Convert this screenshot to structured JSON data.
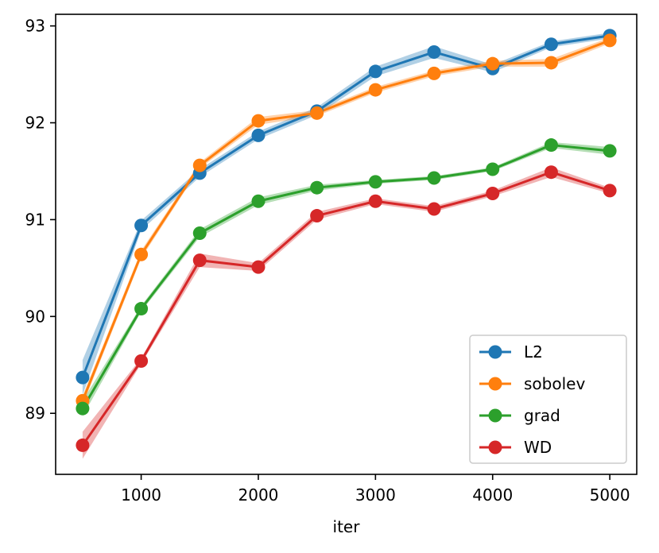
{
  "chart_data": {
    "type": "line",
    "title": "",
    "xlabel": "iter",
    "ylabel": "",
    "xlim": [
      270,
      5230
    ],
    "ylim": [
      88.37,
      93.12
    ],
    "xticks": [
      1000,
      2000,
      3000,
      4000,
      5000
    ],
    "xtick_labels": [
      "1000",
      "2000",
      "3000",
      "4000",
      "5000"
    ],
    "yticks": [
      89,
      90,
      91,
      92,
      93
    ],
    "ytick_labels": [
      "89",
      "90",
      "91",
      "92",
      "93"
    ],
    "x": [
      500,
      1000,
      1500,
      2000,
      2500,
      3000,
      3500,
      4000,
      4500,
      5000
    ],
    "legend_position": "lower right",
    "series": [
      {
        "name": "L2",
        "color": "#1f77b4",
        "values": [
          89.37,
          90.94,
          91.48,
          91.87,
          92.12,
          92.53,
          92.73,
          92.56,
          92.81,
          92.9
        ],
        "band": [
          0.18,
          0.05,
          0.04,
          0.04,
          0.04,
          0.05,
          0.06,
          0.04,
          0.03,
          0.03
        ]
      },
      {
        "name": "sobolev",
        "color": "#ff7f0e",
        "values": [
          89.13,
          90.64,
          91.56,
          92.02,
          92.1,
          92.34,
          92.51,
          92.61,
          92.62,
          92.85
        ],
        "band": [
          0.05,
          0.04,
          0.03,
          0.04,
          0.03,
          0.03,
          0.03,
          0.03,
          0.04,
          0.03
        ]
      },
      {
        "name": "grad",
        "color": "#2ca02c",
        "values": [
          89.05,
          90.08,
          90.86,
          91.19,
          91.33,
          91.39,
          91.43,
          91.52,
          91.77,
          91.71
        ],
        "band": [
          0.08,
          0.03,
          0.04,
          0.04,
          0.03,
          0.02,
          0.02,
          0.02,
          0.03,
          0.04
        ]
      },
      {
        "name": "WD",
        "color": "#d62728",
        "values": [
          88.67,
          89.54,
          90.58,
          90.51,
          91.04,
          91.19,
          91.11,
          91.27,
          91.49,
          91.3
        ],
        "band": [
          0.14,
          0.03,
          0.07,
          0.04,
          0.04,
          0.03,
          0.03,
          0.03,
          0.05,
          0.03
        ]
      }
    ]
  }
}
